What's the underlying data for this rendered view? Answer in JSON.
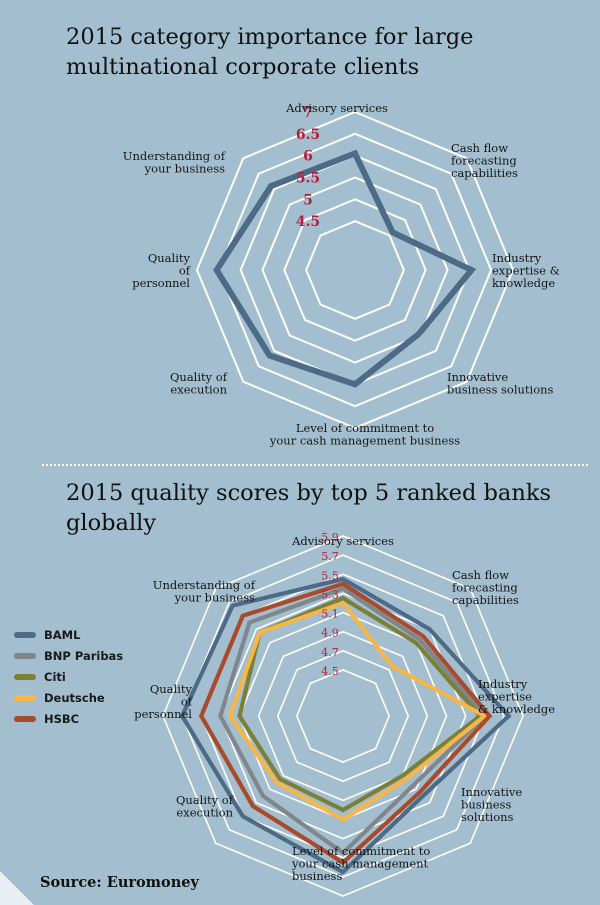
{
  "source": "Source: Euromoney",
  "chart_data": [
    {
      "type": "radar",
      "title": "2015 category importance for large multinational corporate clients",
      "categories": [
        "Advisory services",
        "Cash flow forecasting capabilities",
        "Industry expertise & knowledge",
        "Innovative business solutions",
        "Level of commitment to your cash management business",
        "Quality of execution",
        "Quality of personnel",
        "Understanding of your business"
      ],
      "ticks": [
        "4.5",
        "5",
        "5.5",
        "6",
        "6.5",
        "7"
      ],
      "rlim": [
        4,
        7
      ],
      "series": [
        {
          "values": [
            6.05,
            4.6,
            6.05,
            5.45,
            6.0,
            6.15,
            6.55,
            6.1
          ],
          "color": "#4d6b86"
        }
      ]
    },
    {
      "type": "radar",
      "title": "2015 quality scores by top 5 ranked banks globally",
      "categories": [
        "Advisory services",
        "Cash flow forecasting capabilities",
        "Industry expertise & knowledge",
        "Innovative business solutions",
        "Level of commitment to your cash management business",
        "Quality of execution",
        "Quality of personnel",
        "Understanding of your business"
      ],
      "ticks": [
        "4.5",
        "4.7",
        "4.9",
        "5.1",
        "5.3",
        "5.5",
        "5.7",
        "5.9"
      ],
      "rlim": [
        4.3,
        5.9
      ],
      "legend": "left",
      "series": [
        {
          "name": "BAML",
          "color": "#4d6b86",
          "values": [
            5.45,
            5.3,
            5.75,
            5.2,
            5.65,
            5.5,
            5.7,
            5.65
          ]
        },
        {
          "name": "BNP Paribas",
          "color": "#7f868c",
          "values": [
            5.35,
            5.15,
            5.5,
            5.05,
            5.45,
            5.2,
            5.3,
            5.4
          ]
        },
        {
          "name": "Citi",
          "color": "#7a8038",
          "values": [
            5.25,
            5.1,
            5.45,
            4.9,
            5.0,
            4.95,
            5.1,
            5.25
          ]
        },
        {
          "name": "Deutsche",
          "color": "#f7b64a",
          "values": [
            5.2,
            4.75,
            5.5,
            4.95,
            5.1,
            5.0,
            5.2,
            5.25
          ]
        },
        {
          "name": "HSBC",
          "color": "#a84a2c",
          "values": [
            5.4,
            5.2,
            5.55,
            5.15,
            5.55,
            5.35,
            5.5,
            5.5
          ]
        }
      ]
    }
  ]
}
